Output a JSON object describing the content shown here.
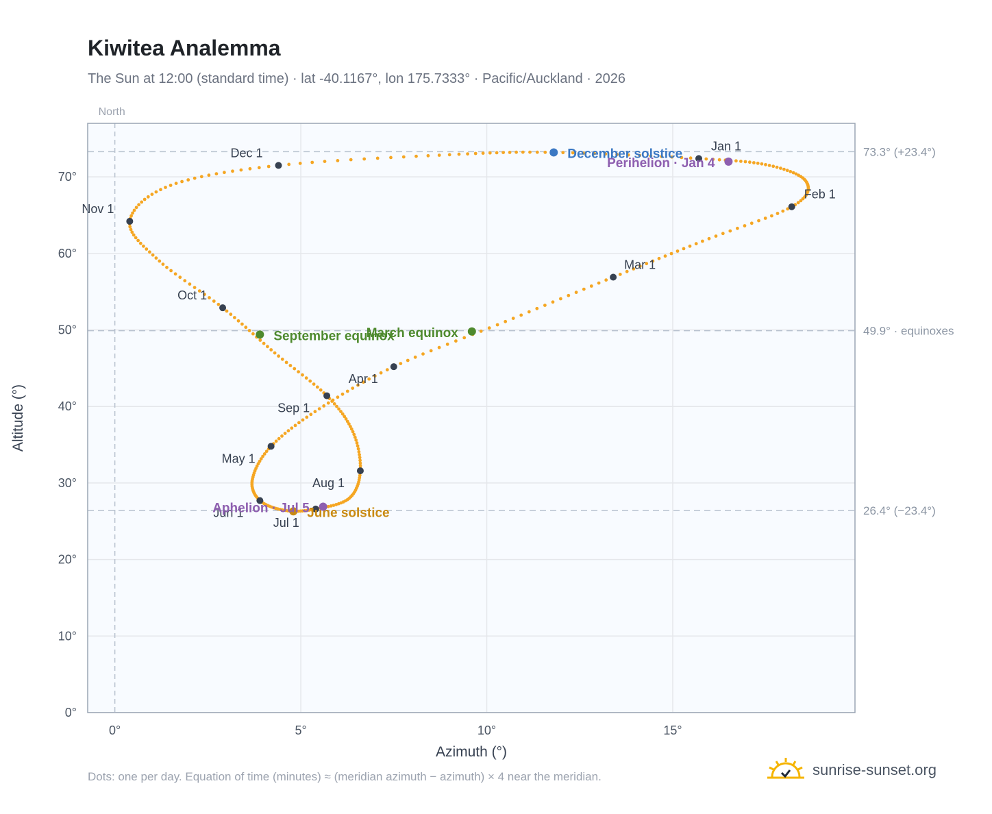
{
  "header": {
    "title": "Kiwitea Analemma",
    "subtitle": "The Sun at 12:00 (standard time) · lat -40.1167°, lon 175.7333° · Pacific/Auckland · 2026"
  },
  "footer": {
    "note": "Dots: one per day. Equation of time (minutes) ≈ (meridian azimuth − azimuth) × 4 near the meridian.",
    "brand": "sunrise-sunset.org"
  },
  "colors": {
    "curve": "#f5a623",
    "month_marker": "#374151",
    "december_solstice": "#3b78c3",
    "june_solstice": "#c98a12",
    "equinox": "#4e8a2e",
    "perihelion_aphelion": "#8e5fb0",
    "grid": "#e5e7eb",
    "reference_line": "#b8c2cf",
    "plot_bg": "#f8fbff"
  },
  "chart_data": {
    "type": "scatter",
    "title": "Kiwitea Analemma",
    "xlabel": "Azimuth (°)",
    "ylabel": "Altitude (°)",
    "xlim": [
      -0.73,
      19.9
    ],
    "ylim": [
      0,
      77
    ],
    "x_ticks": [
      {
        "value": 0,
        "label": "0°"
      },
      {
        "value": 5,
        "label": "5°"
      },
      {
        "value": 10,
        "label": "10°"
      },
      {
        "value": 15,
        "label": "15°"
      }
    ],
    "y_ticks": [
      {
        "value": 0,
        "label": "0°"
      },
      {
        "value": 10,
        "label": "10°"
      },
      {
        "value": 20,
        "label": "20°"
      },
      {
        "value": 30,
        "label": "30°"
      },
      {
        "value": 40,
        "label": "40°"
      },
      {
        "value": 50,
        "label": "50°"
      },
      {
        "value": 60,
        "label": "60°"
      },
      {
        "value": 70,
        "label": "70°"
      }
    ],
    "grid": true,
    "meridian": {
      "azimuth": 0,
      "label": "North"
    },
    "reference_lines": [
      {
        "altitude": 73.3,
        "label": "73.3° (+23.4°)"
      },
      {
        "altitude": 49.9,
        "label": "49.9° · equinoxes"
      },
      {
        "altitude": 26.4,
        "label": "26.4° (−23.4°)"
      }
    ],
    "month_markers": [
      {
        "label": "Jan 1",
        "azimuth": 15.7,
        "altitude": 72.4
      },
      {
        "label": "Feb 1",
        "azimuth": 18.2,
        "altitude": 66.1
      },
      {
        "label": "Mar 1",
        "azimuth": 13.4,
        "altitude": 56.9
      },
      {
        "label": "Apr 1",
        "azimuth": 7.5,
        "altitude": 45.2
      },
      {
        "label": "May 1",
        "azimuth": 4.2,
        "altitude": 34.8
      },
      {
        "label": "Jun 1",
        "azimuth": 3.9,
        "altitude": 27.7
      },
      {
        "label": "Jul 1",
        "azimuth": 5.4,
        "altitude": 26.6
      },
      {
        "label": "Aug 1",
        "azimuth": 6.6,
        "altitude": 31.6
      },
      {
        "label": "Sep 1",
        "azimuth": 5.7,
        "altitude": 41.4
      },
      {
        "label": "Oct 1",
        "azimuth": 2.9,
        "altitude": 52.9
      },
      {
        "label": "Nov 1",
        "azimuth": 0.4,
        "altitude": 64.2
      },
      {
        "label": "Dec 1",
        "azimuth": 4.4,
        "altitude": 71.5
      }
    ],
    "events": [
      {
        "label": "December solstice",
        "azimuth": 11.8,
        "altitude": 73.2,
        "kind": "december_solstice"
      },
      {
        "label": "Perihelion · Jan 4",
        "azimuth": 16.5,
        "altitude": 72.0,
        "kind": "perihelion_aphelion"
      },
      {
        "label": "March equinox",
        "azimuth": 9.6,
        "altitude": 49.8,
        "kind": "equinox"
      },
      {
        "label": "September equinox",
        "azimuth": 3.9,
        "altitude": 49.4,
        "kind": "equinox"
      },
      {
        "label": "June solstice",
        "azimuth": 4.8,
        "altitude": 26.3,
        "kind": "june_solstice"
      },
      {
        "label": "Aphelion · Jul 5",
        "azimuth": 5.6,
        "altitude": 26.9,
        "kind": "perihelion_aphelion"
      }
    ],
    "daily_path_anchors": [
      {
        "azimuth": 15.7,
        "altitude": 72.4
      },
      {
        "azimuth": 17.6,
        "altitude": 71.5
      },
      {
        "azimuth": 18.6,
        "altitude": 69.3
      },
      {
        "azimuth": 18.2,
        "altitude": 66.1
      },
      {
        "azimuth": 15.8,
        "altitude": 61.6
      },
      {
        "azimuth": 13.4,
        "altitude": 56.9
      },
      {
        "azimuth": 10.5,
        "altitude": 51.1
      },
      {
        "azimuth": 7.5,
        "altitude": 45.2
      },
      {
        "azimuth": 5.5,
        "altitude": 39.7
      },
      {
        "azimuth": 4.2,
        "altitude": 34.8
      },
      {
        "azimuth": 3.7,
        "altitude": 30.5
      },
      {
        "azimuth": 3.9,
        "altitude": 27.7
      },
      {
        "azimuth": 4.6,
        "altitude": 26.4
      },
      {
        "azimuth": 5.4,
        "altitude": 26.6
      },
      {
        "azimuth": 6.3,
        "altitude": 28.0
      },
      {
        "azimuth": 6.6,
        "altitude": 31.6
      },
      {
        "azimuth": 6.4,
        "altitude": 36.7
      },
      {
        "azimuth": 5.7,
        "altitude": 41.4
      },
      {
        "azimuth": 4.3,
        "altitude": 47.0
      },
      {
        "azimuth": 2.9,
        "altitude": 52.9
      },
      {
        "azimuth": 1.2,
        "altitude": 59.0
      },
      {
        "azimuth": 0.4,
        "altitude": 64.2
      },
      {
        "azimuth": 1.5,
        "altitude": 68.9
      },
      {
        "azimuth": 4.4,
        "altitude": 71.5
      },
      {
        "azimuth": 9.0,
        "altitude": 72.9
      },
      {
        "azimuth": 11.8,
        "altitude": 73.2
      },
      {
        "azimuth": 15.7,
        "altitude": 72.4
      }
    ]
  }
}
